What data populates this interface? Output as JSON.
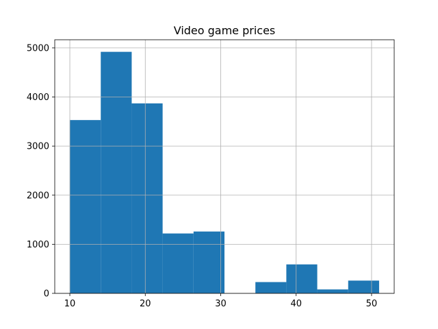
{
  "chart_data": {
    "type": "bar",
    "title": "Video game prices",
    "xlabel": "",
    "ylabel": "",
    "histogram": true,
    "bins": [
      {
        "x0": 10.0,
        "x1": 14.1,
        "count": 3530
      },
      {
        "x0": 14.1,
        "x1": 18.2,
        "count": 4920
      },
      {
        "x0": 18.2,
        "x1": 22.3,
        "count": 3870
      },
      {
        "x0": 22.3,
        "x1": 26.4,
        "count": 1220
      },
      {
        "x0": 26.4,
        "x1": 30.5,
        "count": 1260
      },
      {
        "x0": 30.5,
        "x1": 34.6,
        "count": 0
      },
      {
        "x0": 34.6,
        "x1": 38.7,
        "count": 230
      },
      {
        "x0": 38.7,
        "x1": 42.8,
        "count": 590
      },
      {
        "x0": 42.8,
        "x1": 46.9,
        "count": 80
      },
      {
        "x0": 46.9,
        "x1": 51.0,
        "count": 260
      }
    ],
    "xlim": [
      8.0,
      53.0
    ],
    "ylim": [
      0,
      5166
    ],
    "xticks": [
      10,
      20,
      30,
      40,
      50
    ],
    "yticks": [
      0,
      1000,
      2000,
      3000,
      4000,
      5000
    ],
    "grid": true,
    "bar_color": "#1f77b4",
    "grid_color": "#b0b0b0"
  }
}
